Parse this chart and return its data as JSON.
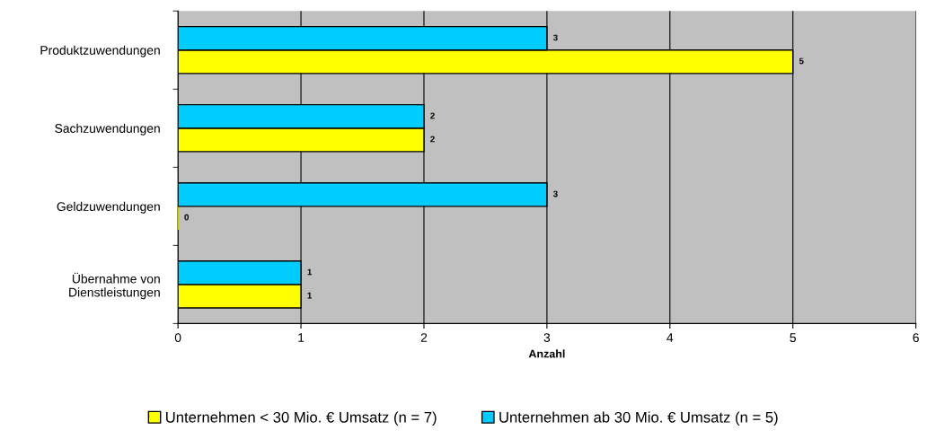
{
  "chart_data": {
    "type": "bar",
    "orientation": "horizontal",
    "xlabel": "Anzahl",
    "categories": [
      "Produktzuwendungen",
      "Sachzuwendungen",
      "Geldzuwendungen",
      "Übernahme von\nDienstleistungen"
    ],
    "series": [
      {
        "name": "Unternehmen < 30 Mio. € Umsatz (n = 7)",
        "color": "#ffff00",
        "values": [
          5,
          2,
          0,
          1
        ]
      },
      {
        "name": "Unternehmen ab 30 Mio. € Umsatz (n = 5)",
        "color": "#00ccff",
        "values": [
          3,
          2,
          3,
          1
        ]
      }
    ],
    "xlim": [
      0,
      6
    ],
    "xticks": [
      0,
      1,
      2,
      3,
      4,
      5,
      6
    ],
    "grid": "x",
    "legend": "bottom",
    "data_labels": true
  }
}
